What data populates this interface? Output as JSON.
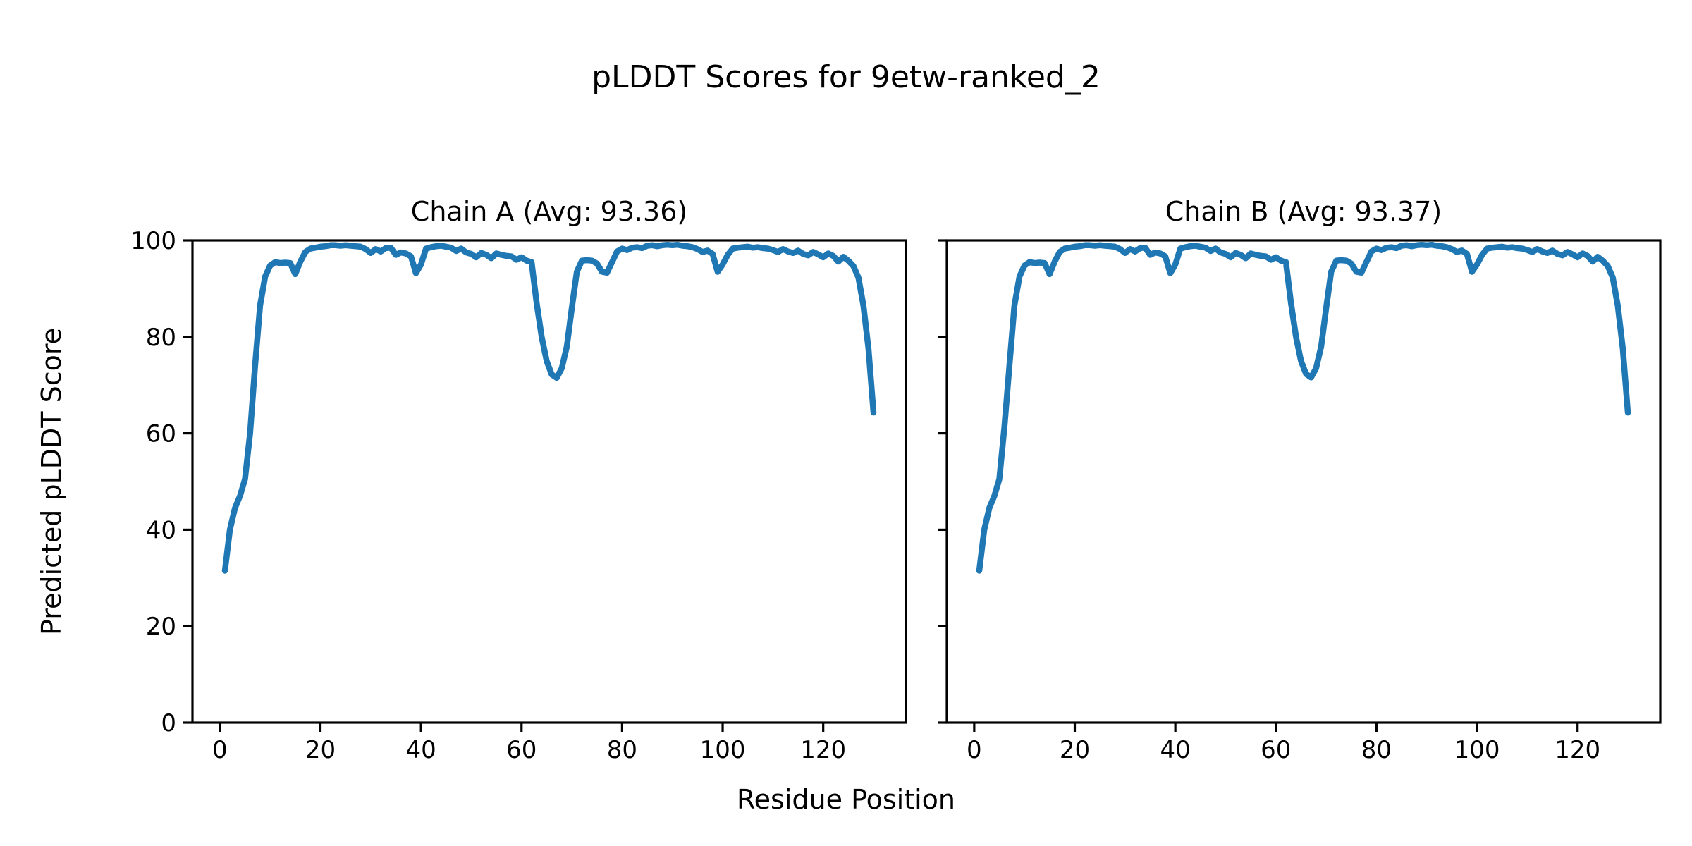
{
  "chart_data": {
    "type": "line",
    "suptitle": "pLDDT Scores for 9etw-ranked_2",
    "xlabel": "Residue Position",
    "ylabel": "Predicted pLDDT Score",
    "line_color": "#1f77b4",
    "axes_color": "#000000",
    "background_color": "#ffffff",
    "xlim": [
      -5.45,
      136.45
    ],
    "ylim": [
      0,
      100
    ],
    "x_ticks": [
      0,
      20,
      40,
      60,
      80,
      100,
      120
    ],
    "y_ticks": [
      0,
      20,
      40,
      60,
      80,
      100
    ],
    "grid": false,
    "legend": "none",
    "subplots": [
      {
        "id": "chain-a",
        "title": "Chain A (Avg: 93.36)",
        "avg": 93.36,
        "x_start": 1,
        "values": [
          31.5,
          40.0,
          44.5,
          47.0,
          50.5,
          60.0,
          74.0,
          86.5,
          92.5,
          94.8,
          95.5,
          95.3,
          95.4,
          95.3,
          93.0,
          95.6,
          97.6,
          98.3,
          98.5,
          98.7,
          98.8,
          99.0,
          99.0,
          98.9,
          99.0,
          98.9,
          98.8,
          98.7,
          98.2,
          97.4,
          98.2,
          97.7,
          98.4,
          98.5,
          97.0,
          97.5,
          97.3,
          96.7,
          93.2,
          95.0,
          98.3,
          98.6,
          98.8,
          98.9,
          98.7,
          98.5,
          97.8,
          98.3,
          97.5,
          97.2,
          96.5,
          97.4,
          97.0,
          96.3,
          97.3,
          97.0,
          96.8,
          96.7,
          96.0,
          96.5,
          95.8,
          95.5,
          87.0,
          80.0,
          75.0,
          72.2,
          71.5,
          73.5,
          78.0,
          86.0,
          93.5,
          95.8,
          95.9,
          95.8,
          95.2,
          93.5,
          93.3,
          95.5,
          97.7,
          98.3,
          98.0,
          98.5,
          98.6,
          98.4,
          98.9,
          99.0,
          98.8,
          99.0,
          99.1,
          99.0,
          99.1,
          98.9,
          98.8,
          98.6,
          98.2,
          97.6,
          97.9,
          97.2,
          93.5,
          95.0,
          97.0,
          98.3,
          98.5,
          98.6,
          98.7,
          98.5,
          98.6,
          98.4,
          98.3,
          98.0,
          97.6,
          98.2,
          97.7,
          97.4,
          97.9,
          97.2,
          96.9,
          97.6,
          97.1,
          96.5,
          97.3,
          96.8,
          95.6,
          96.6,
          95.8,
          94.7,
          92.3,
          86.5,
          77.5,
          64.3
        ]
      },
      {
        "id": "chain-b",
        "title": "Chain B (Avg: 93.37)",
        "avg": 93.37,
        "x_start": 1,
        "values": [
          31.5,
          40.0,
          44.5,
          47.0,
          50.5,
          61.3,
          74.0,
          86.5,
          92.5,
          94.8,
          95.5,
          95.3,
          95.4,
          95.3,
          93.0,
          95.6,
          97.6,
          98.3,
          98.5,
          98.7,
          98.8,
          99.0,
          99.0,
          98.9,
          99.0,
          98.9,
          98.8,
          98.7,
          98.2,
          97.4,
          98.2,
          97.7,
          98.4,
          98.5,
          97.0,
          97.5,
          97.3,
          96.7,
          93.2,
          95.0,
          98.3,
          98.6,
          98.8,
          98.9,
          98.7,
          98.5,
          97.8,
          98.3,
          97.5,
          97.2,
          96.5,
          97.4,
          97.0,
          96.3,
          97.3,
          97.0,
          96.8,
          96.7,
          96.0,
          96.5,
          95.8,
          95.5,
          87.0,
          80.0,
          75.0,
          72.3,
          71.6,
          73.5,
          78.0,
          86.0,
          93.5,
          95.8,
          95.9,
          95.8,
          95.2,
          93.5,
          93.3,
          95.5,
          97.7,
          98.3,
          98.0,
          98.5,
          98.6,
          98.4,
          98.9,
          99.0,
          98.8,
          99.0,
          99.1,
          99.0,
          99.1,
          98.9,
          98.8,
          98.6,
          98.2,
          97.6,
          97.9,
          97.2,
          93.5,
          95.0,
          97.0,
          98.3,
          98.5,
          98.6,
          98.7,
          98.5,
          98.6,
          98.4,
          98.3,
          98.0,
          97.6,
          98.2,
          97.7,
          97.4,
          97.9,
          97.2,
          96.9,
          97.6,
          97.1,
          96.5,
          97.3,
          96.8,
          95.6,
          96.6,
          95.8,
          94.7,
          92.3,
          86.5,
          77.5,
          64.3
        ]
      }
    ]
  }
}
